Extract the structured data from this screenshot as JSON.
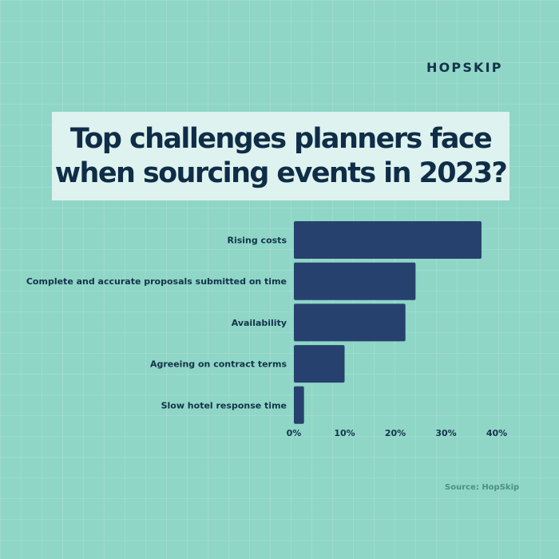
{
  "brand": "HOPSKIP",
  "title": "Top challenges planners face\nwhen sourcing events in 2023?",
  "source": "Source: HopSkip",
  "colors": {
    "background": "#8fd6c6",
    "title_box": "#def2ef",
    "bar": "#27416f",
    "text": "#13324b"
  },
  "chart_data": {
    "type": "bar",
    "orientation": "horizontal",
    "categories": [
      "Rising costs",
      "Complete and accurate proposals submitted on time",
      "Availability",
      "Agreeing on contract terms",
      "Slow hotel response time"
    ],
    "values": [
      37,
      24,
      22,
      10,
      2
    ],
    "xlim": [
      0,
      40
    ],
    "xticks": [
      0,
      10,
      20,
      30,
      40
    ],
    "tick_labels": [
      "0%",
      "10%",
      "20%",
      "30%",
      "40%"
    ],
    "grid": false,
    "legend": "none"
  }
}
